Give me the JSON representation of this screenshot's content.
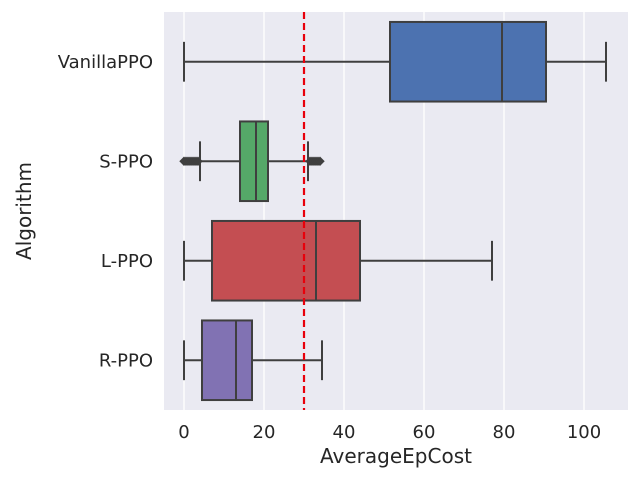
{
  "chart_data": {
    "type": "boxplot",
    "orientation": "horizontal",
    "xlabel": "AverageEpCost",
    "ylabel": "Algorithm",
    "xlim": [
      -5,
      111
    ],
    "xticks": [
      0,
      20,
      40,
      60,
      80,
      100
    ],
    "grid": true,
    "reference_line": {
      "x": 30,
      "color": "#e8000b",
      "style": "dashed"
    },
    "boxes": [
      {
        "name": "VanillaPPO",
        "color": "#4c72b0",
        "whisker_low": 0,
        "q1": 51.5,
        "median": 79.5,
        "q3": 90.5,
        "whisker_high": 105.5,
        "outliers": []
      },
      {
        "name": "S-PPO",
        "color": "#55a868",
        "whisker_low": 4,
        "q1": 14,
        "median": 18,
        "q3": 21,
        "whisker_high": 31,
        "outliers": [
          0,
          0.5,
          1,
          1.5,
          2,
          2.5,
          3,
          3.5,
          31.5,
          32,
          32.5,
          33,
          33.5,
          34
        ]
      },
      {
        "name": "L-PPO",
        "color": "#c44e52",
        "whisker_low": 0,
        "q1": 7,
        "median": 33,
        "q3": 44,
        "whisker_high": 77,
        "outliers": []
      },
      {
        "name": "R-PPO",
        "color": "#8172b3",
        "whisker_low": 0,
        "q1": 4.5,
        "median": 13,
        "q3": 17,
        "whisker_high": 34.5,
        "outliers": []
      }
    ]
  }
}
